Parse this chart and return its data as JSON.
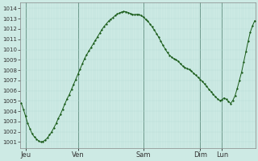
{
  "yticks": [
    1001,
    1002,
    1003,
    1004,
    1005,
    1006,
    1007,
    1008,
    1009,
    1010,
    1011,
    1012,
    1013,
    1014
  ],
  "ylim": [
    1000.4,
    1014.6
  ],
  "day_labels": [
    "Jeu",
    "Ven",
    "Sam",
    "Dim",
    "Lun"
  ],
  "day_positions": [
    2,
    26,
    56,
    82,
    92
  ],
  "bg_color": "#cdeae4",
  "grid_minor_color": "#b8ddd7",
  "grid_major_color": "#4a7a6a",
  "line_color": "#1a5c1a",
  "marker_color": "#1a5c1a",
  "pressure_data": [
    1004.8,
    1004.2,
    1003.5,
    1002.8,
    1002.3,
    1001.8,
    1001.5,
    1001.3,
    1001.1,
    1001.0,
    1001.05,
    1001.2,
    1001.4,
    1001.7,
    1002.0,
    1002.4,
    1002.8,
    1003.3,
    1003.7,
    1004.2,
    1004.7,
    1005.2,
    1005.6,
    1006.1,
    1006.6,
    1007.1,
    1007.6,
    1008.1,
    1008.6,
    1009.1,
    1009.5,
    1009.85,
    1010.2,
    1010.55,
    1010.9,
    1011.25,
    1011.6,
    1011.95,
    1012.25,
    1012.5,
    1012.75,
    1012.95,
    1013.1,
    1013.3,
    1013.45,
    1013.55,
    1013.65,
    1013.7,
    1013.68,
    1013.6,
    1013.5,
    1013.42,
    1013.38,
    1013.42,
    1013.4,
    1013.3,
    1013.15,
    1012.95,
    1012.75,
    1012.5,
    1012.2,
    1011.9,
    1011.55,
    1011.2,
    1010.8,
    1010.4,
    1010.05,
    1009.7,
    1009.45,
    1009.25,
    1009.1,
    1009.0,
    1008.85,
    1008.6,
    1008.4,
    1008.25,
    1008.15,
    1008.05,
    1007.9,
    1007.7,
    1007.5,
    1007.3,
    1007.1,
    1006.9,
    1006.65,
    1006.4,
    1006.15,
    1005.9,
    1005.65,
    1005.4,
    1005.2,
    1005.05,
    1005.1,
    1005.3,
    1005.15,
    1004.95,
    1004.75,
    1005.05,
    1005.5,
    1006.2,
    1007.0,
    1007.8,
    1008.8,
    1009.8,
    1010.8,
    1011.7,
    1012.3,
    1012.8
  ]
}
